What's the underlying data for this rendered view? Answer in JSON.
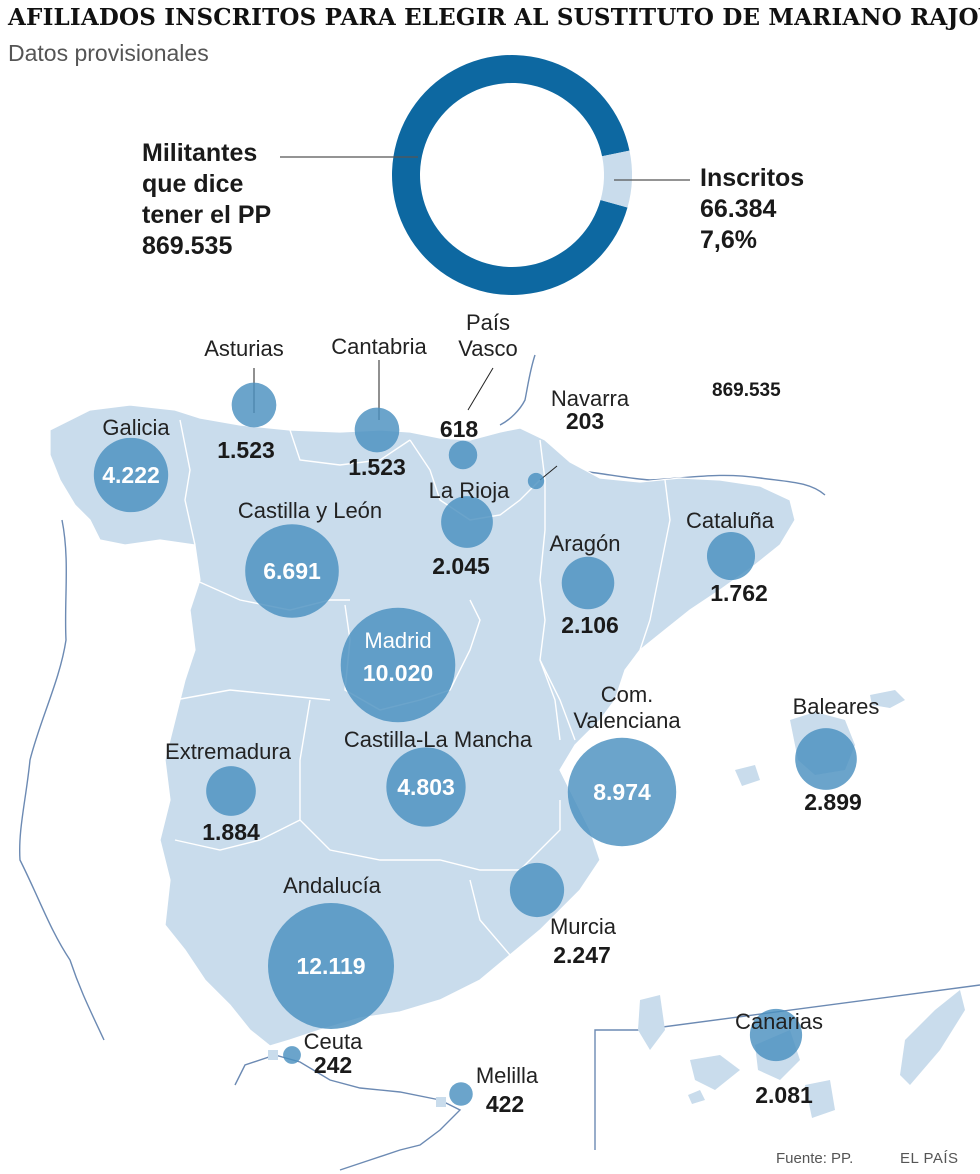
{
  "title": "AFILIADOS INSCRITOS PARA ELEGIR AL SUSTITUTO DE MARIANO RAJOY",
  "subtitle": "Datos provisionales",
  "donut": {
    "total_label_lines": [
      "Militantes",
      "que dice",
      "tener el PP"
    ],
    "total_value": "869.535",
    "part_label": "Inscritos",
    "part_value": "66.384",
    "part_pct": "7,6%",
    "total": 869535,
    "part": 66384,
    "colors": {
      "main": "#0d68a1",
      "part": "#c9dcec"
    }
  },
  "floating_label": "869.535",
  "colors": {
    "land": "#c9dcec",
    "border": "#ffffff",
    "bubble": "#4a90c0",
    "bubble_opacity": 0.82,
    "coast": "#6c8ab3"
  },
  "regions": [
    {
      "name": "Galicia",
      "value_label": "4.222",
      "value": 4222
    },
    {
      "name": "Asturias",
      "value_label": "1.523",
      "value": 1523
    },
    {
      "name": "Cantabria",
      "value_label": "1.523",
      "value": 1523
    },
    {
      "name": "País Vasco",
      "name_lines": [
        "País",
        "Vasco"
      ],
      "value_label": "618",
      "value": 618
    },
    {
      "name": "Navarra",
      "value_label": "203",
      "value": 203
    },
    {
      "name": "La Rioja",
      "value_label": "2.045",
      "value": 2045
    },
    {
      "name": "Castilla y León",
      "value_label": "6.691",
      "value": 6691
    },
    {
      "name": "Aragón",
      "value_label": "2.106",
      "value": 2106
    },
    {
      "name": "Cataluña",
      "value_label": "1.762",
      "value": 1762
    },
    {
      "name": "Madrid",
      "value_label": "10.020",
      "value": 10020
    },
    {
      "name": "Com. Valenciana",
      "name_lines": [
        "Com.",
        "Valenciana"
      ],
      "value_label": "8.974",
      "value": 8974
    },
    {
      "name": "Baleares",
      "value_label": "2.899",
      "value": 2899
    },
    {
      "name": "Extremadura",
      "value_label": "1.884",
      "value": 1884
    },
    {
      "name": "Castilla-La Mancha",
      "value_label": "4.803",
      "value": 4803
    },
    {
      "name": "Andalucía",
      "value_label": "12.119",
      "value": 12119
    },
    {
      "name": "Murcia",
      "value_label": "2.247",
      "value": 2247
    },
    {
      "name": "Ceuta",
      "value_label": "242",
      "value": 242
    },
    {
      "name": "Melilla",
      "value_label": "422",
      "value": 422
    },
    {
      "name": "Canarias",
      "value_label": "2.081",
      "value": 2081
    }
  ],
  "source": "Fuente: PP.",
  "brand": "EL PAÍS"
}
